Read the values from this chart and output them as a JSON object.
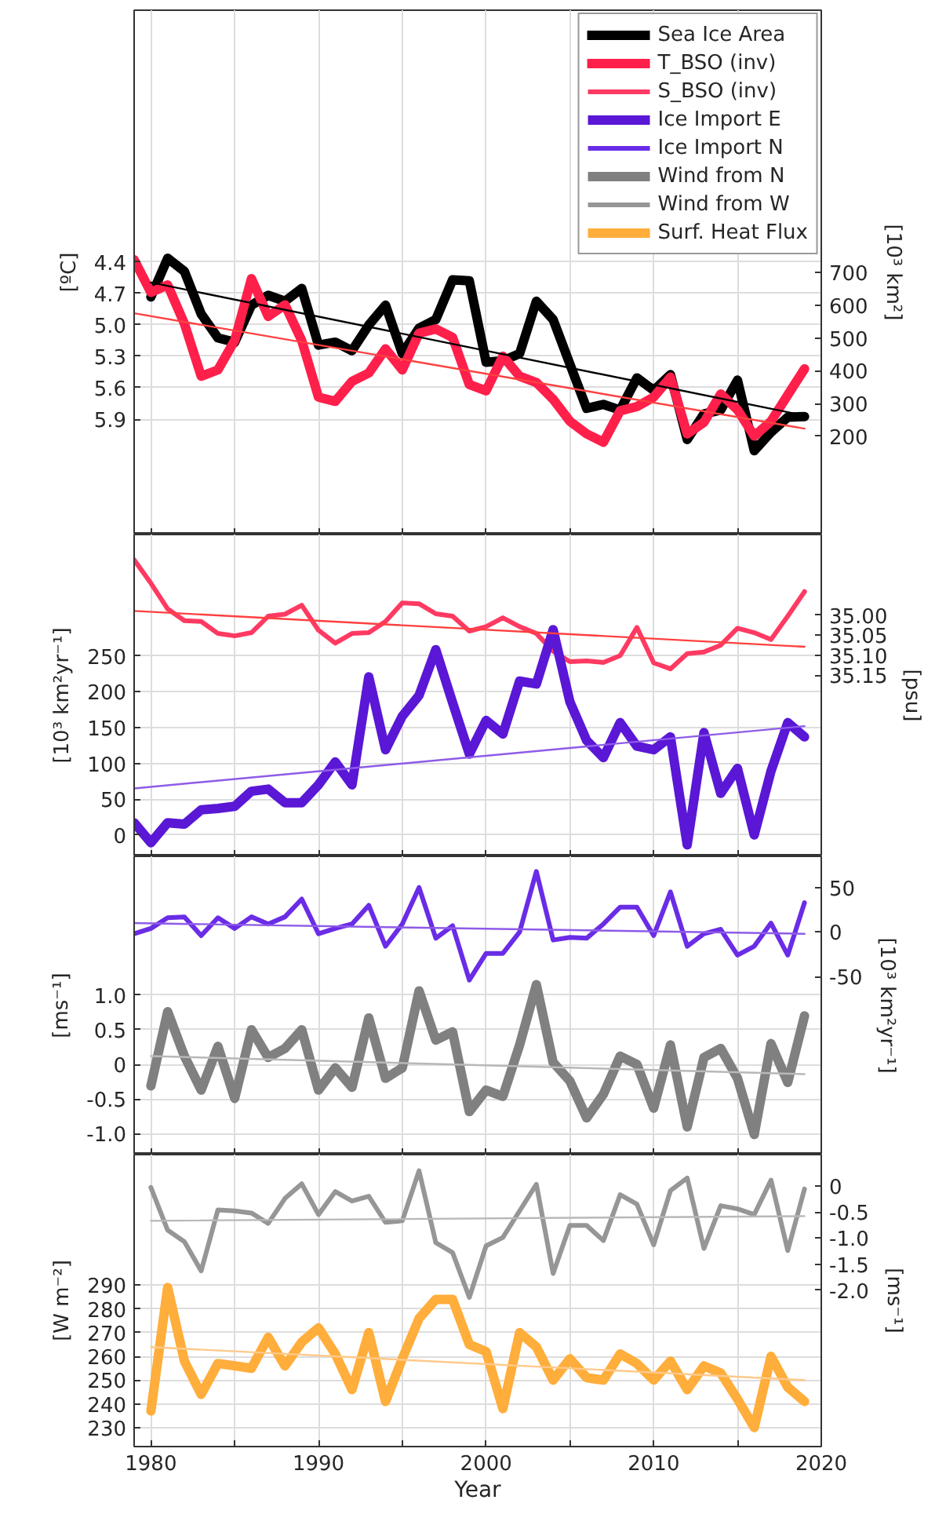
{
  "chart_data": [
    {
      "type": "line",
      "legend": "top right",
      "grid": true,
      "tick_labels": "y",
      "x": [
        1980,
        1981,
        1982,
        1983,
        1984,
        1985,
        1986,
        1987,
        1988,
        1989,
        1990,
        1991,
        1992,
        1993,
        1994,
        1995,
        1996,
        1997,
        1998,
        1999,
        2000,
        2001,
        2002,
        2003,
        2004,
        2005,
        2006,
        2007,
        2008,
        2009,
        2010,
        2011,
        2012,
        2013,
        2014,
        2015,
        2016,
        2017,
        2018,
        2019
      ],
      "xlim": [
        1979,
        2020
      ],
      "xticks": [
        1980,
        1985,
        1990,
        1995,
        2000,
        2005,
        2010,
        2015,
        2020
      ],
      "ylabel": "[ºC]",
      "ylim": [
        7.0,
        2.0
      ],
      "yticks": [
        4.4,
        4.7,
        {
          "value": 5.0,
          "label": "5.0"
        },
        5.3,
        5.6,
        5.9
      ],
      "y2label": "[10³ km²]",
      "y2lim": [
        -100,
        1500
      ],
      "y2ticks": [
        200,
        300,
        400,
        500,
        600,
        700
      ],
      "series": [
        {
          "name": "Sea Ice Area",
          "color": "#000000",
          "axis": "y2",
          "values": [
            625,
            743,
            703,
            573,
            500,
            487,
            600,
            630,
            612,
            651,
            478,
            487,
            461,
            539,
            600,
            452,
            530,
            556,
            677,
            674,
            426,
            430,
            452,
            612,
            556,
            420,
            285,
            297,
            280,
            378,
            340,
            388,
            190,
            268,
            280,
            371,
            156,
            212,
            258,
            260
          ]
        },
        {
          "name": "T_BSO (inv)",
          "color": "#ff1f4b",
          "x": [
            1979,
            1980,
            1981,
            1982,
            1983,
            1984,
            1985,
            1986,
            1987,
            1988,
            1989,
            1990,
            1991,
            1992,
            1993,
            1994,
            1995,
            1996,
            1997,
            1998,
            1999,
            2000,
            2001,
            2002,
            2003,
            2004,
            2005,
            2006,
            2007,
            2008,
            2009,
            2010,
            2011,
            2012,
            2013,
            2014,
            2015,
            2016,
            2017,
            2018,
            2019
          ],
          "values": [
            4.38,
            4.69,
            4.62,
            4.99,
            5.49,
            5.43,
            5.15,
            4.56,
            4.92,
            4.81,
            5.15,
            5.69,
            5.73,
            5.54,
            5.46,
            5.23,
            5.43,
            5.08,
            5.04,
            5.12,
            5.57,
            5.63,
            5.3,
            5.49,
            5.55,
            5.71,
            5.92,
            6.04,
            6.12,
            5.82,
            5.78,
            5.69,
            5.5,
            6.04,
            5.93,
            5.66,
            5.81,
            6.06,
            5.92,
            5.67,
            5.42
          ]
        },
        {
          "color": "#000000",
          "axis": "y2",
          "x": [
            1980,
            2019
          ],
          "values": [
            669,
            263
          ]
        },
        {
          "color": "#ff4040",
          "x": [
            1979,
            2019
          ],
          "values": [
            4.89,
            5.99
          ]
        }
      ]
    },
    {
      "type": "line",
      "legend": "top right",
      "grid": true,
      "tick_labels": "y",
      "xlim": [
        1979,
        2020
      ],
      "xticks": [
        1980,
        1985,
        1990,
        1995,
        2000,
        2005,
        2010,
        2015,
        2020
      ],
      "x": [
        1979,
        1980,
        1981,
        1982,
        1983,
        1984,
        1985,
        1986,
        1987,
        1988,
        1989,
        1990,
        1991,
        1992,
        1993,
        1994,
        1995,
        1996,
        1997,
        1998,
        1999,
        2000,
        2001,
        2002,
        2003,
        2004,
        2005,
        2006,
        2007,
        2008,
        2009,
        2010,
        2011,
        2012,
        2013,
        2014,
        2015,
        2016,
        2017,
        2018,
        2019
      ],
      "ylabel": "[10³ km²yr⁻¹]",
      "ylim": [
        -30,
        420
      ],
      "yticks": [
        0,
        50,
        100,
        150,
        200,
        250
      ],
      "y2label": "[psu]",
      "y2lim": [
        35.6,
        34.8
      ],
      "y2ticks": [
        {
          "value": 35.0,
          "label": "35.00"
        },
        {
          "value": 35.05,
          "label": "35.05"
        },
        {
          "value": 35.1,
          "label": "35.10"
        },
        {
          "value": 35.15,
          "label": "35.15"
        }
      ],
      "series": [
        {
          "name": "S_BSO (inv)",
          "color": "#ff3a62",
          "axis": "y2",
          "values": [
            34.863,
            34.921,
            34.985,
            35.014,
            35.016,
            35.046,
            35.052,
            35.044,
            35.003,
            34.998,
            34.976,
            35.038,
            35.07,
            35.046,
            35.044,
            35.016,
            34.97,
            34.972,
            34.997,
            35.003,
            35.04,
            35.029,
            35.007,
            35.029,
            35.046,
            35.09,
            35.116,
            35.114,
            35.118,
            35.101,
            35.031,
            35.119,
            35.134,
            35.096,
            35.092,
            35.075,
            35.033,
            35.044,
            35.061,
            35.003,
            34.942
          ]
        },
        {
          "name": "Ice Import E",
          "color": "#5a17d6",
          "values": [
            17,
            -11,
            17,
            15,
            35,
            37,
            40,
            61,
            64,
            45,
            45,
            70,
            102,
            70,
            221,
            119,
            166,
            195,
            259,
            185,
            113,
            160,
            141,
            215,
            211,
            287,
            186,
            132,
            108,
            157,
            124,
            119,
            137,
            -14,
            143,
            58,
            93,
            0,
            89,
            157,
            137
          ]
        },
        {
          "color": "#ff4040",
          "axis": "y2",
          "x": [
            1979,
            2019
          ],
          "values": [
            34.99,
            35.079
          ]
        },
        {
          "color": "#8e5be8",
          "x": [
            1979,
            2019
          ],
          "values": [
            65,
            152
          ]
        }
      ]
    },
    {
      "type": "line",
      "legend": "top right",
      "grid": true,
      "tick_labels": "y",
      "xlim": [
        1979,
        2020
      ],
      "xticks": [
        1980,
        1985,
        1990,
        1995,
        2000,
        2005,
        2010,
        2015,
        2020
      ],
      "x": [
        1980,
        1981,
        1982,
        1983,
        1984,
        1985,
        1986,
        1987,
        1988,
        1989,
        1990,
        1991,
        1992,
        1993,
        1994,
        1995,
        1996,
        1997,
        1998,
        1999,
        2000,
        2001,
        2002,
        2003,
        2004,
        2005,
        2006,
        2007,
        2008,
        2009,
        2010,
        2011,
        2012,
        2013,
        2014,
        2015,
        2016,
        2017,
        2018,
        2019
      ],
      "ylabel": "[ms⁻¹]",
      "ylim": [
        -1.3,
        3.0
      ],
      "yticks": [
        {
          "value": 1.0,
          "label": "1.0"
        },
        0.5,
        0,
        -0.5,
        {
          "value": -1.0,
          "label": "-1.0"
        }
      ],
      "y2label": "[10³ km²yr⁻¹]",
      "y2lim": [
        -250,
        85
      ],
      "y2ticks": [
        50,
        0,
        -50
      ],
      "series": [
        {
          "name": "Ice Import N",
          "color": "#6a2ce6",
          "axis": "y2",
          "x": [
            1979,
            1980,
            1981,
            1982,
            1983,
            1984,
            1985,
            1986,
            1987,
            1988,
            1989,
            1990,
            1991,
            1992,
            1993,
            1994,
            1995,
            1996,
            1997,
            1998,
            1999,
            2000,
            2001,
            2002,
            2003,
            2004,
            2005,
            2006,
            2007,
            2008,
            2009,
            2010,
            2011,
            2012,
            2013,
            2014,
            2015,
            2016,
            2017,
            2018,
            2019
          ],
          "values": [
            -2,
            4,
            16,
            17,
            -4,
            16,
            4,
            17,
            9,
            17,
            37,
            -2,
            4,
            9,
            30,
            -16,
            9,
            50,
            -7,
            7,
            -54,
            -24,
            -24,
            0,
            68,
            -9,
            -6,
            -7,
            9,
            28,
            28,
            -4,
            45,
            -16,
            -2,
            3,
            -26,
            -16,
            10,
            -26,
            33
          ]
        },
        {
          "name": "Wind from N",
          "color": "#808080",
          "values": [
            -0.31,
            0.76,
            0.12,
            -0.37,
            0.26,
            -0.49,
            0.5,
            0.1,
            0.23,
            0.5,
            -0.37,
            -0.05,
            -0.33,
            0.67,
            -0.2,
            -0.05,
            1.06,
            0.35,
            0.47,
            -0.68,
            -0.37,
            -0.46,
            0.28,
            1.15,
            0.03,
            -0.24,
            -0.77,
            -0.43,
            0.12,
            0.0,
            -0.63,
            0.28,
            -0.9,
            0.1,
            0.23,
            -0.2,
            -1.01,
            0.3,
            -0.26,
            0.7
          ]
        },
        {
          "color": "#8e5be8",
          "axis": "y2",
          "x": [
            1979,
            2019
          ],
          "values": [
            10,
            -2
          ]
        },
        {
          "color": "#b8b8b8",
          "x": [
            1980,
            2019
          ],
          "values": [
            0.12,
            -0.14
          ]
        }
      ]
    },
    {
      "type": "line",
      "legend": "top right",
      "grid": true,
      "xlabel": "Year",
      "xlim": [
        1979,
        2020
      ],
      "xticks": [
        1980,
        {
          "value": 1985,
          "label": null
        },
        1990,
        {
          "value": 1995,
          "label": null
        },
        2000,
        {
          "value": 2005,
          "label": null
        },
        2010,
        {
          "value": 2015,
          "label": null
        },
        2020
      ],
      "x": [
        1980,
        1981,
        1982,
        1983,
        1984,
        1985,
        1986,
        1987,
        1988,
        1989,
        1990,
        1991,
        1992,
        1993,
        1994,
        1995,
        1996,
        1997,
        1998,
        1999,
        2000,
        2001,
        2002,
        2003,
        2004,
        2005,
        2006,
        2007,
        2008,
        2009,
        2010,
        2011,
        2012,
        2013,
        2014,
        2015,
        2016,
        2017,
        2018,
        2019
      ],
      "ylabel": "[W m⁻²]",
      "ylim": [
        222,
        345
      ],
      "yticks": [
        230,
        240,
        250,
        260,
        270,
        280,
        290
      ],
      "y2label": "[ms⁻¹]",
      "y2lim": [
        -5.0,
        0.6
      ],
      "y2ticks": [
        0,
        -0.5,
        {
          "value": -1.0,
          "label": "-1.0"
        },
        -1.5,
        {
          "value": -2.0,
          "label": "-2.0"
        }
      ],
      "series": [
        {
          "name": "Wind from W",
          "color": "#969696",
          "axis": "y2",
          "values": [
            -0.03,
            -0.85,
            -1.07,
            -1.63,
            -0.46,
            -0.48,
            -0.52,
            -0.72,
            -0.24,
            0.04,
            -0.55,
            -0.11,
            -0.29,
            -0.2,
            -0.7,
            -0.67,
            0.29,
            -1.09,
            -1.28,
            -2.14,
            -1.15,
            -0.99,
            -0.48,
            0.03,
            -1.68,
            -0.76,
            -0.76,
            -1.05,
            -0.17,
            -0.35,
            -1.13,
            -0.09,
            0.15,
            -1.2,
            -0.38,
            -0.44,
            -0.55,
            0.11,
            -1.24,
            -0.06
          ]
        },
        {
          "name": "Surf. Heat Flux",
          "color": "#ffad3b",
          "values": [
            237,
            289,
            258,
            244,
            257,
            256,
            255,
            268,
            256,
            266,
            272,
            261,
            246,
            270,
            241,
            259,
            276,
            284,
            284,
            265,
            262,
            238,
            270,
            264,
            250,
            259,
            251,
            250,
            261,
            257,
            250,
            258,
            246,
            256,
            253,
            242,
            230,
            260,
            247,
            241
          ]
        },
        {
          "color": "#b8b8b8",
          "axis": "y2",
          "x": [
            1980,
            2019
          ],
          "values": [
            -0.67,
            -0.58
          ]
        },
        {
          "color": "#ffc98a",
          "x": [
            1980,
            2019
          ],
          "values": [
            263.9,
            250
          ]
        }
      ]
    }
  ]
}
